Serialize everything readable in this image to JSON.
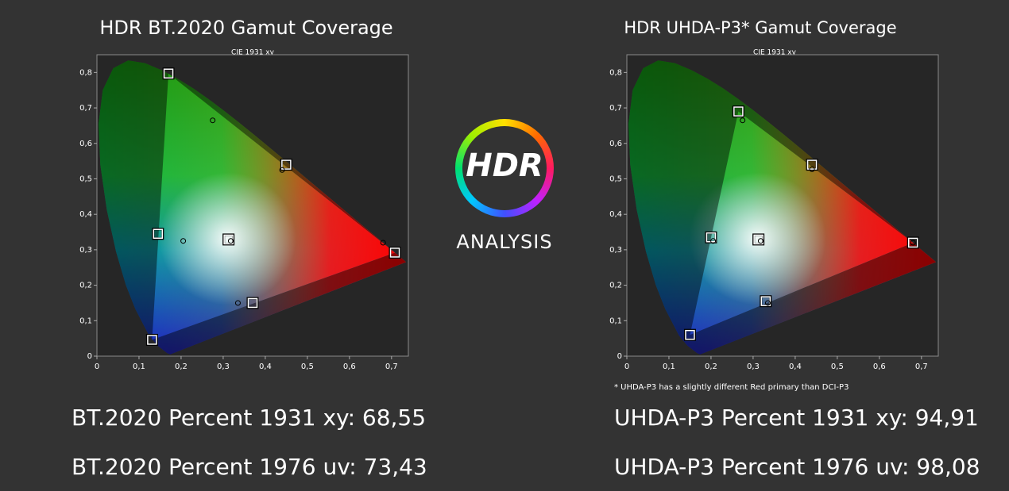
{
  "chart_data": [
    {
      "type": "scatter",
      "title": "HDR BT.2020  Gamut Coverage",
      "subtitle": "CIE 1931 xy",
      "xlim": [
        0,
        0.74
      ],
      "ylim": [
        0,
        0.85
      ],
      "xticks": [
        0,
        {
          "value": 0.1,
          "label": "0,1"
        },
        {
          "value": 0.2,
          "label": "0,2"
        },
        {
          "value": 0.3,
          "label": "0,3"
        },
        {
          "value": 0.4,
          "label": "0,4"
        },
        {
          "value": 0.5,
          "label": "0,5"
        },
        {
          "value": 0.6,
          "label": "0,6"
        },
        {
          "value": 0.7,
          "label": "0,7"
        }
      ],
      "yticks": [
        0,
        {
          "value": 0.1,
          "label": "0,1"
        },
        {
          "value": 0.2,
          "label": "0,2"
        },
        {
          "value": 0.3,
          "label": "0,3"
        },
        {
          "value": 0.4,
          "label": "0,4"
        },
        {
          "value": 0.5,
          "label": "0,5"
        },
        {
          "value": 0.6,
          "label": "0,6"
        },
        {
          "value": 0.7,
          "label": "0,7"
        },
        {
          "value": 0.8,
          "label": "0,8"
        }
      ],
      "series": [
        {
          "marker": "square",
          "color": "#ffffff",
          "x": [
            0.17,
            0.708,
            0.131,
            0.3127,
            0.145,
            0.45,
            0.37
          ],
          "values": [
            0.797,
            0.292,
            0.046,
            0.329,
            0.345,
            0.54,
            0.15
          ]
        },
        {
          "marker": "circle",
          "color": "#000000",
          "x": [
            0.275,
            0.44,
            0.68,
            0.205,
            0.318,
            0.335
          ],
          "values": [
            0.665,
            0.525,
            0.32,
            0.325,
            0.325,
            0.15
          ]
        }
      ]
    },
    {
      "type": "scatter",
      "title": "HDR UHDA-P3* Gamut Coverage",
      "subtitle": "CIE 1931 xy",
      "annotation": "* UHDA-P3 has a slightly different Red primary than DCI-P3",
      "xlim": [
        0,
        0.74
      ],
      "ylim": [
        0,
        0.85
      ],
      "xticks": [
        0,
        {
          "value": 0.1,
          "label": "0,1"
        },
        {
          "value": 0.2,
          "label": "0,2"
        },
        {
          "value": 0.3,
          "label": "0,3"
        },
        {
          "value": 0.4,
          "label": "0,4"
        },
        {
          "value": 0.5,
          "label": "0,5"
        },
        {
          "value": 0.6,
          "label": "0,6"
        },
        {
          "value": 0.7,
          "label": "0,7"
        }
      ],
      "yticks": [
        0,
        {
          "value": 0.1,
          "label": "0,1"
        },
        {
          "value": 0.2,
          "label": "0,2"
        },
        {
          "value": 0.3,
          "label": "0,3"
        },
        {
          "value": 0.4,
          "label": "0,4"
        },
        {
          "value": 0.5,
          "label": "0,5"
        },
        {
          "value": 0.6,
          "label": "0,6"
        },
        {
          "value": 0.7,
          "label": "0,7"
        },
        {
          "value": 0.8,
          "label": "0,8"
        }
      ],
      "series": [
        {
          "marker": "square",
          "color": "#ffffff",
          "x": [
            0.265,
            0.68,
            0.15,
            0.3127,
            0.2,
            0.44,
            0.33
          ],
          "values": [
            0.69,
            0.32,
            0.06,
            0.329,
            0.335,
            0.54,
            0.155
          ]
        },
        {
          "marker": "circle",
          "color": "#000000",
          "x": [
            0.275,
            0.44,
            0.68,
            0.205,
            0.318,
            0.335
          ],
          "values": [
            0.665,
            0.527,
            0.32,
            0.325,
            0.325,
            0.15
          ]
        }
      ]
    }
  ],
  "logo": {
    "mark": "HDR",
    "caption": "ANALYSIS"
  },
  "results": [
    "BT.2020 Percent 1931 xy: 68,55",
    "BT.2020 Percent 1976 uv: 73,43",
    "UHDA-P3 Percent 1931 xy: 94,91",
    "UHDA-P3 Percent 1976 uv: 98,08"
  ]
}
